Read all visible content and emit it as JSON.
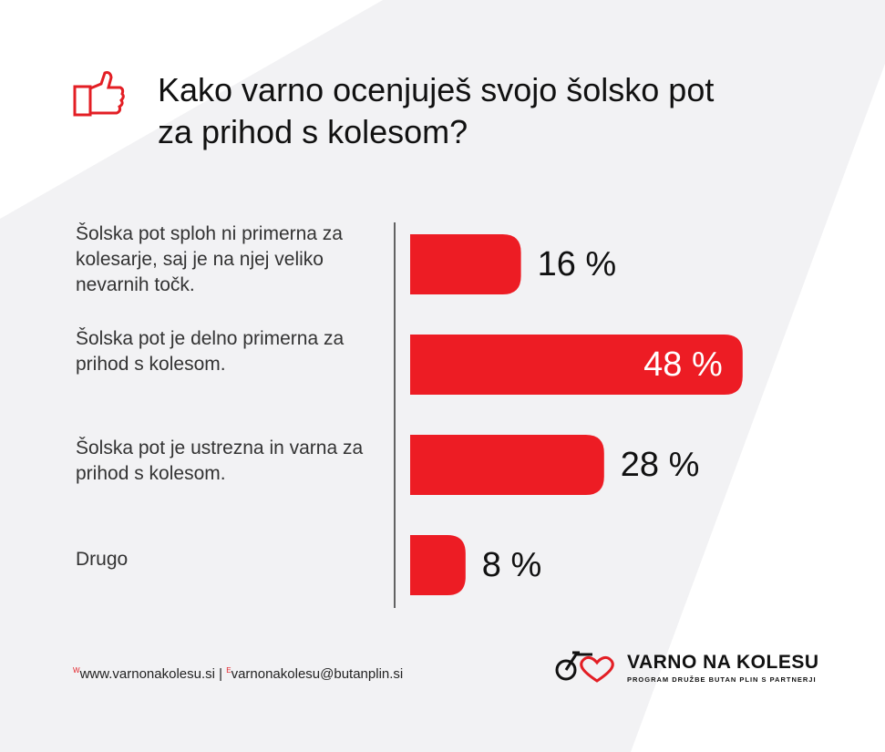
{
  "chart_data": {
    "type": "bar",
    "orientation": "horizontal",
    "title": "Kako varno ocenjuješ svojo šolsko pot za prihod s kolesom?",
    "categories": [
      "Šolska pot sploh ni primerna za kolesarje, saj je na njej veliko nevarnih točk.",
      "Šolska pot je delno primerna za prihod s kolesom.",
      "Šolska pot je ustrezna in varna za prihod s kolesom.",
      "Drugo"
    ],
    "values": [
      16,
      48,
      28,
      8
    ],
    "value_labels": [
      "16 %",
      "48 %",
      "28 %",
      "8 %"
    ],
    "color": "#ed1c24"
  },
  "footer": {
    "web_prefix": "W",
    "web": "www.varnonakolesu.si",
    "separator": "|",
    "email_prefix": "E",
    "email": "varnonakolesu@butanplin.si",
    "brand": "VARNO NA KOLESU",
    "brand_tagline": "PROGRAM DRUŽBE BUTAN PLIN S PARTNERJI"
  }
}
